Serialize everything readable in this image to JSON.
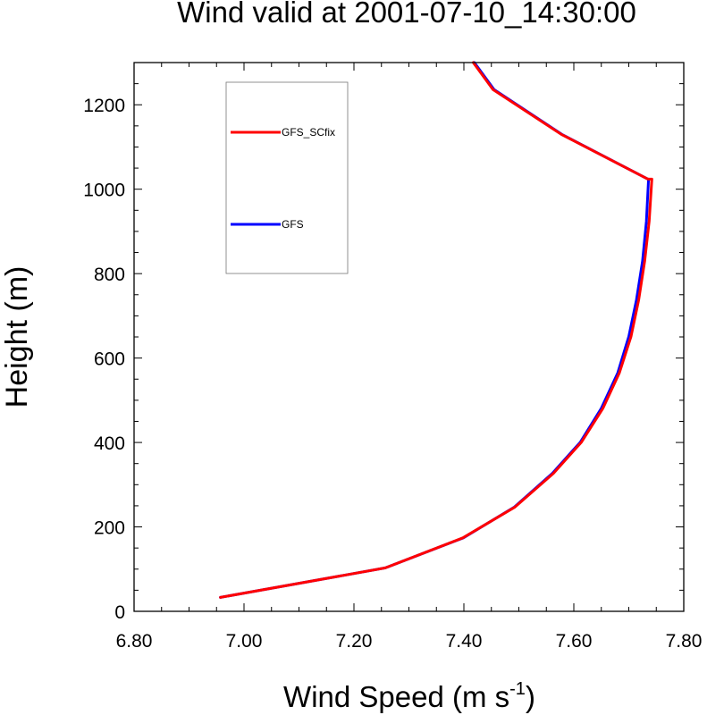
{
  "chart_data": {
    "type": "line",
    "title": "Wind valid at 2001-07-10_14:30:00",
    "xlabel_main": "Wind Speed (m s",
    "xlabel_sup": "-1",
    "xlabel_close": ")",
    "ylabel": "Height (m)",
    "xlim": [
      6.8,
      7.8
    ],
    "ylim": [
      0,
      1300
    ],
    "xticks": [
      "6.80",
      "7.00",
      "7.20",
      "7.40",
      "7.60",
      "7.80"
    ],
    "yticks": [
      "0",
      "200",
      "400",
      "600",
      "800",
      "1000",
      "1200"
    ],
    "legend_placement": "upper-left inside plot",
    "series": [
      {
        "name": "GFS",
        "color": "#0000ff",
        "x": [
          6.957,
          7.257,
          7.399,
          7.492,
          7.561,
          7.612,
          7.65,
          7.68,
          7.7,
          7.714,
          7.725,
          7.732,
          7.736,
          7.735,
          7.578,
          7.455,
          7.419
        ],
        "y": [
          33,
          103,
          174,
          247,
          327,
          401,
          481,
          565,
          651,
          738,
          830,
          924,
          1024,
          1024,
          1130,
          1236,
          1300
        ]
      },
      {
        "name": "GFS_SCfix",
        "color": "#ff0000",
        "x": [
          6.957,
          7.257,
          7.398,
          7.493,
          7.563,
          7.614,
          7.653,
          7.683,
          7.704,
          7.718,
          7.729,
          7.737,
          7.742,
          7.735,
          7.577,
          7.453,
          7.417
        ],
        "y": [
          33,
          103,
          174,
          247,
          327,
          401,
          481,
          565,
          651,
          738,
          830,
          924,
          1024,
          1024,
          1130,
          1236,
          1300
        ]
      }
    ],
    "legend": [
      {
        "name": "GFS_SCfix",
        "color": "#ff0000"
      },
      {
        "name": "GFS",
        "color": "#0000ff"
      }
    ]
  }
}
